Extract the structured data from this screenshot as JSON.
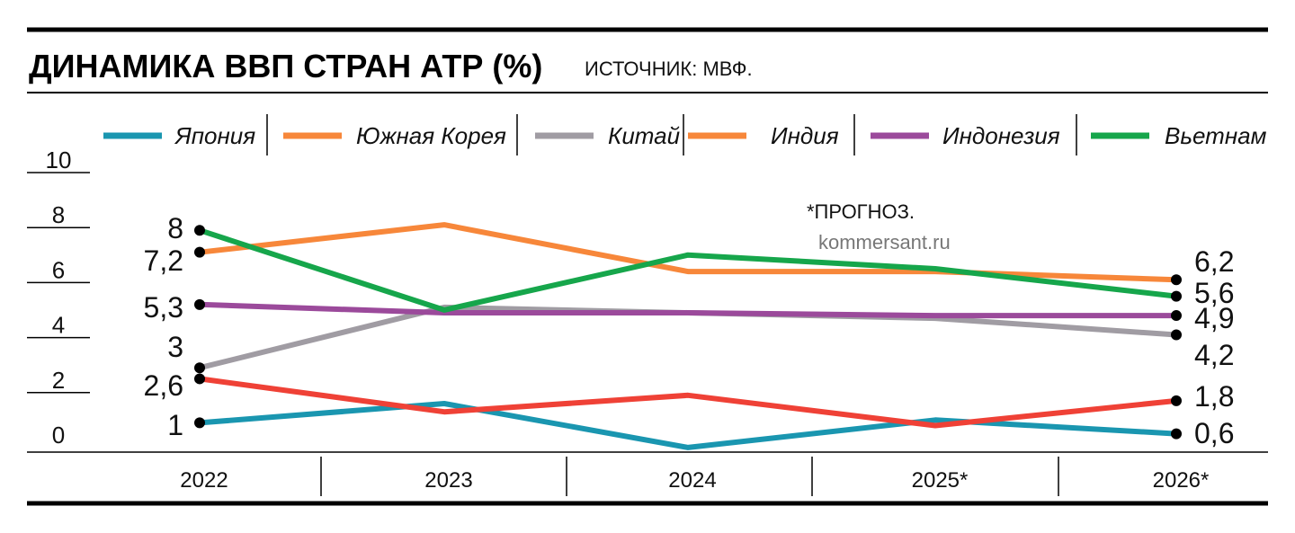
{
  "chart_data": {
    "type": "line",
    "title": "ДИНАМИКА ВВП СТРАН АТР (%)",
    "source": "ИСТОЧНИК: МВФ.",
    "note": "*ПРОГНОЗ.",
    "credit": "kommersant.ru",
    "categories": [
      "2022",
      "2023",
      "2024",
      "2025*",
      "2026*"
    ],
    "ylim": [
      0,
      10
    ],
    "yticks": [
      "0",
      "2",
      "4",
      "6",
      "8",
      "10"
    ],
    "legend_position": "top",
    "series": [
      {
        "name": "Япония",
        "color": "#1a96b0",
        "values": [
          1,
          1.7,
          0.1,
          1.1,
          0.6
        ],
        "start_label": "1",
        "end_label": "0,6"
      },
      {
        "name": "Южная Корея",
        "color": "#f7873a",
        "line_color": "#ef4136",
        "values": [
          2.6,
          1.4,
          2.0,
          0.9,
          1.8
        ],
        "start_label": "2,6",
        "end_label": "1,8"
      },
      {
        "name": "Китай",
        "color": "#a09ca3",
        "values": [
          3.0,
          5.2,
          5.0,
          4.8,
          4.2
        ],
        "start_label": "3",
        "end_label": "4,2"
      },
      {
        "name": "Индия",
        "color": "#f7873a",
        "values": [
          7.2,
          8.2,
          6.5,
          6.5,
          6.2
        ],
        "start_label": "7,2",
        "end_label": "6,2"
      },
      {
        "name": "Индонезия",
        "color": "#9b4a9b",
        "values": [
          5.3,
          5.0,
          5.0,
          4.9,
          4.9
        ],
        "start_label": "5,3",
        "end_label": "4,9"
      },
      {
        "name": "Вьетнам",
        "color": "#16a64b",
        "values": [
          8.0,
          5.1,
          7.1,
          6.6,
          5.6
        ],
        "start_label": "8",
        "end_label": "5,6"
      }
    ]
  }
}
